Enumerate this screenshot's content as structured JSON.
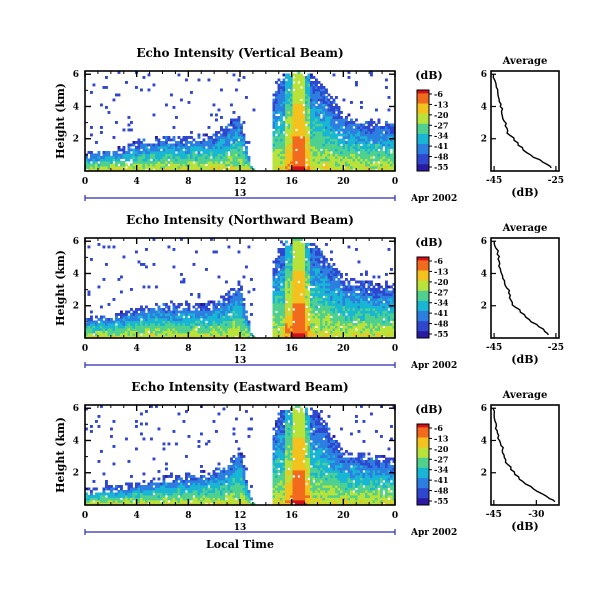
{
  "figure": {
    "xlabel": "Local Time",
    "date_label": "Apr 2002",
    "day_label": "13"
  },
  "colorbar": {
    "unit": "(dB)",
    "ticks": [
      "-6",
      "-13",
      "-20",
      "-27",
      "-34",
      "-41",
      "-48",
      "-55"
    ],
    "colors": [
      "#d2111b",
      "#f26a1d",
      "#f4c21f",
      "#b9e23a",
      "#4fd08e",
      "#18b6d4",
      "#2c7fe0",
      "#2f47cf",
      "#2a1aa3"
    ]
  },
  "chart_data": [
    {
      "type": "heatmap",
      "title": "Echo Intensity (Vertical Beam)",
      "ylabel": "Height (km)",
      "xlabel": "Local Time",
      "x_ticks": [
        "0",
        "4",
        "8",
        "12",
        "16",
        "20",
        "0"
      ],
      "y_ticks": [
        "6",
        "4",
        "2"
      ],
      "xlim": [
        0,
        24
      ],
      "ylim": [
        0,
        6.2
      ],
      "value_range": [
        -55,
        -6
      ],
      "features": {
        "boundary_layer_top_km": [
          [
            0,
            1.2
          ],
          [
            2,
            1.3
          ],
          [
            4,
            1.9
          ],
          [
            6,
            2.2
          ],
          [
            8,
            2.1
          ],
          [
            10,
            2.4
          ],
          [
            11,
            3.0
          ],
          [
            12,
            3.6
          ],
          [
            13,
            0.0
          ],
          [
            14,
            3.2
          ],
          [
            15,
            5.9
          ],
          [
            16.5,
            6.2
          ],
          [
            18,
            5.9
          ],
          [
            20,
            3.6
          ],
          [
            22,
            3.2
          ],
          [
            24,
            3.0
          ]
        ],
        "gap_hours": [
          [
            13.2,
            14.5
          ]
        ],
        "storm_core_hours": [
          15.5,
          17.5
        ]
      }
    },
    {
      "type": "heatmap",
      "title": "Echo Intensity (Northward Beam)",
      "ylabel": "Height (km)",
      "xlabel": "Local Time",
      "x_ticks": [
        "0",
        "4",
        "8",
        "12",
        "16",
        "20",
        "0"
      ],
      "y_ticks": [
        "6",
        "4",
        "2"
      ],
      "xlim": [
        0,
        24
      ],
      "ylim": [
        0,
        6.2
      ],
      "value_range": [
        -55,
        -6
      ],
      "features": {
        "boundary_layer_top_km": [
          [
            0,
            1.3
          ],
          [
            2,
            1.5
          ],
          [
            4,
            1.9
          ],
          [
            6,
            2.2
          ],
          [
            8,
            2.1
          ],
          [
            10,
            2.3
          ],
          [
            11,
            2.8
          ],
          [
            12,
            3.6
          ],
          [
            13,
            0.0
          ],
          [
            14,
            3.0
          ],
          [
            15,
            5.9
          ],
          [
            16.5,
            6.2
          ],
          [
            18,
            5.9
          ],
          [
            20,
            3.8
          ],
          [
            22,
            3.5
          ],
          [
            24,
            3.3
          ]
        ],
        "gap_hours": [
          [
            13.2,
            14.5
          ]
        ],
        "storm_core_hours": [
          15.5,
          17.5
        ]
      }
    },
    {
      "type": "heatmap",
      "title": "Echo Intensity (Eastward Beam)",
      "ylabel": "Height (km)",
      "xlabel": "Local Time",
      "x_ticks": [
        "0",
        "4",
        "8",
        "12",
        "16",
        "20",
        "0"
      ],
      "y_ticks": [
        "6",
        "4",
        "2"
      ],
      "xlim": [
        0,
        24
      ],
      "ylim": [
        0,
        6.2
      ],
      "value_range": [
        -55,
        -6
      ],
      "features": {
        "boundary_layer_top_km": [
          [
            0,
            1.0
          ],
          [
            2,
            1.2
          ],
          [
            4,
            1.4
          ],
          [
            6,
            1.8
          ],
          [
            8,
            2.0
          ],
          [
            10,
            2.2
          ],
          [
            11,
            2.6
          ],
          [
            12,
            3.6
          ],
          [
            13,
            0.0
          ],
          [
            14,
            3.0
          ],
          [
            15,
            5.9
          ],
          [
            16.5,
            6.2
          ],
          [
            18,
            5.9
          ],
          [
            20,
            3.4
          ],
          [
            22,
            3.2
          ],
          [
            24,
            2.9
          ]
        ],
        "gap_hours": [
          [
            13.2,
            14.5
          ]
        ],
        "storm_core_hours": [
          15.5,
          17.5
        ]
      }
    },
    {
      "type": "line",
      "title": "Average",
      "xlabel": "(dB)",
      "x_ticks": [
        "-45",
        "-25"
      ],
      "y_ticks": [
        "6",
        "4",
        "2"
      ],
      "xlim": [
        -46,
        -24
      ],
      "ylim": [
        0,
        6.2
      ],
      "series": [
        {
          "x": [
            -45.2,
            -44.7,
            -44.3,
            -43.8,
            -43.6,
            -43.3,
            -43.0,
            -42.6,
            -42.3,
            -41.8,
            -41.4,
            -40.6,
            -39.8,
            -38.5,
            -37.2,
            -35.6,
            -33.2,
            -30.2,
            -27.8,
            -26.5
          ],
          "y": [
            6.0,
            5.6,
            5.2,
            4.9,
            4.6,
            4.3,
            4.0,
            3.7,
            3.4,
            3.1,
            2.8,
            2.5,
            2.2,
            1.9,
            1.6,
            1.3,
            1.0,
            0.7,
            0.4,
            0.2
          ]
        }
      ]
    },
    {
      "type": "line",
      "title": "Average",
      "xlabel": "(dB)",
      "x_ticks": [
        "-45",
        "-25"
      ],
      "y_ticks": [
        "6",
        "4",
        "2"
      ],
      "xlim": [
        -46,
        -24
      ],
      "ylim": [
        0,
        6.2
      ],
      "series": [
        {
          "x": [
            -45.0,
            -44.5,
            -44.0,
            -43.7,
            -43.2,
            -43.0,
            -42.6,
            -42.2,
            -41.6,
            -40.9,
            -40.3,
            -40.0,
            -39.1,
            -38.0,
            -36.5,
            -34.8,
            -33.0,
            -30.5,
            -28.6,
            -27.4
          ],
          "y": [
            6.0,
            5.6,
            5.2,
            4.9,
            4.6,
            4.3,
            4.0,
            3.7,
            3.4,
            3.1,
            2.8,
            2.5,
            2.2,
            1.9,
            1.6,
            1.3,
            1.0,
            0.7,
            0.4,
            0.2
          ]
        }
      ]
    },
    {
      "type": "line",
      "title": "Average",
      "xlabel": "(dB)",
      "x_ticks": [
        "-45",
        "-30"
      ],
      "y_ticks": [
        "6",
        "4",
        "2"
      ],
      "xlim": [
        -46,
        -22
      ],
      "ylim": [
        0,
        6.2
      ],
      "series": [
        {
          "x": [
            -45.3,
            -44.9,
            -44.6,
            -44.1,
            -43.8,
            -43.3,
            -43.0,
            -42.5,
            -42.0,
            -41.4,
            -40.8,
            -40.0,
            -39.0,
            -37.6,
            -36.0,
            -33.8,
            -31.0,
            -28.0,
            -25.4,
            -23.5
          ],
          "y": [
            6.0,
            5.6,
            5.2,
            4.9,
            4.6,
            4.3,
            4.0,
            3.7,
            3.4,
            3.1,
            2.8,
            2.5,
            2.2,
            1.9,
            1.6,
            1.3,
            1.0,
            0.7,
            0.4,
            0.2
          ]
        }
      ]
    }
  ]
}
